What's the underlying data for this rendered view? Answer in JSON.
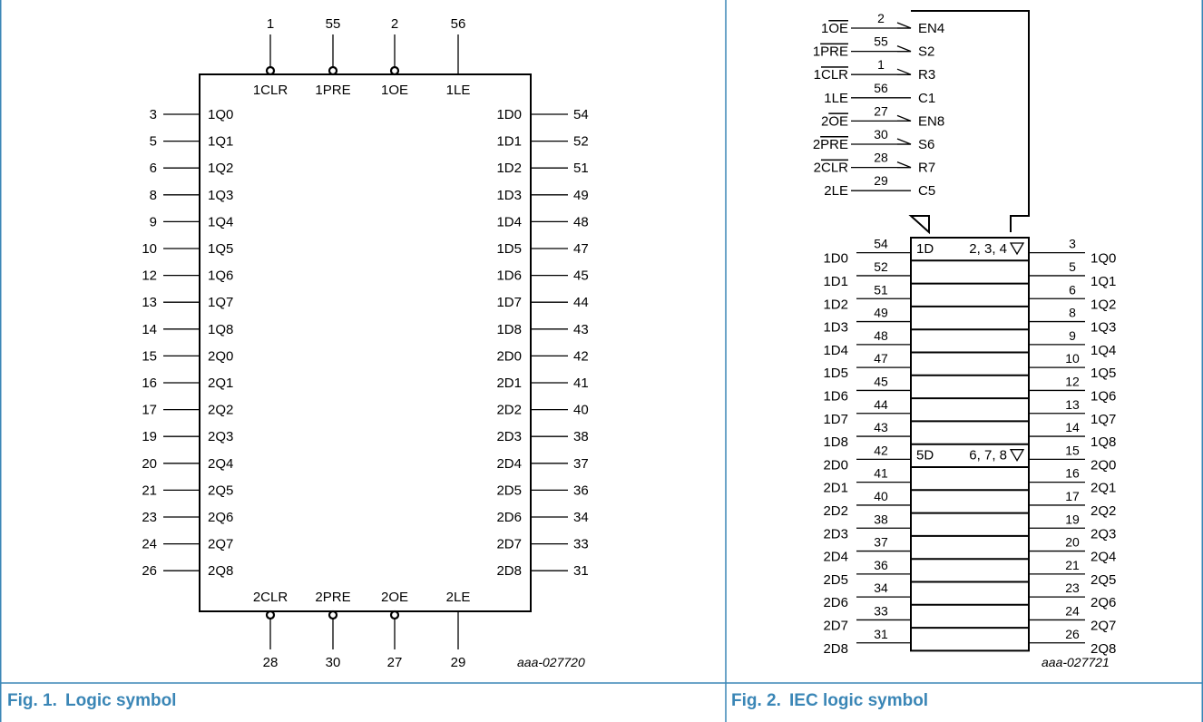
{
  "fig1": {
    "number": "Fig. 1.",
    "title": "Logic symbol",
    "code": "aaa-027720",
    "top_pins": [
      {
        "pin": "1",
        "label": "1CLR",
        "inverted": true
      },
      {
        "pin": "55",
        "label": "1PRE",
        "inverted": true
      },
      {
        "pin": "2",
        "label": "1OE",
        "inverted": true
      },
      {
        "pin": "56",
        "label": "1LE",
        "inverted": false
      }
    ],
    "bottom_pins": [
      {
        "pin": "28",
        "label": "2CLR",
        "inverted": true
      },
      {
        "pin": "30",
        "label": "2PRE",
        "inverted": true
      },
      {
        "pin": "27",
        "label": "2OE",
        "inverted": true
      },
      {
        "pin": "29",
        "label": "2LE",
        "inverted": false
      }
    ],
    "left_pins": [
      {
        "pin": "3",
        "label": "1Q0"
      },
      {
        "pin": "5",
        "label": "1Q1"
      },
      {
        "pin": "6",
        "label": "1Q2"
      },
      {
        "pin": "8",
        "label": "1Q3"
      },
      {
        "pin": "9",
        "label": "1Q4"
      },
      {
        "pin": "10",
        "label": "1Q5"
      },
      {
        "pin": "12",
        "label": "1Q6"
      },
      {
        "pin": "13",
        "label": "1Q7"
      },
      {
        "pin": "14",
        "label": "1Q8"
      },
      {
        "pin": "15",
        "label": "2Q0"
      },
      {
        "pin": "16",
        "label": "2Q1"
      },
      {
        "pin": "17",
        "label": "2Q2"
      },
      {
        "pin": "19",
        "label": "2Q3"
      },
      {
        "pin": "20",
        "label": "2Q4"
      },
      {
        "pin": "21",
        "label": "2Q5"
      },
      {
        "pin": "23",
        "label": "2Q6"
      },
      {
        "pin": "24",
        "label": "2Q7"
      },
      {
        "pin": "26",
        "label": "2Q8"
      }
    ],
    "right_pins": [
      {
        "pin": "54",
        "label": "1D0"
      },
      {
        "pin": "52",
        "label": "1D1"
      },
      {
        "pin": "51",
        "label": "1D2"
      },
      {
        "pin": "49",
        "label": "1D3"
      },
      {
        "pin": "48",
        "label": "1D4"
      },
      {
        "pin": "47",
        "label": "1D5"
      },
      {
        "pin": "45",
        "label": "1D6"
      },
      {
        "pin": "44",
        "label": "1D7"
      },
      {
        "pin": "43",
        "label": "1D8"
      },
      {
        "pin": "42",
        "label": "2D0"
      },
      {
        "pin": "41",
        "label": "2D1"
      },
      {
        "pin": "40",
        "label": "2D2"
      },
      {
        "pin": "38",
        "label": "2D3"
      },
      {
        "pin": "37",
        "label": "2D4"
      },
      {
        "pin": "36",
        "label": "2D5"
      },
      {
        "pin": "34",
        "label": "2D6"
      },
      {
        "pin": "33",
        "label": "2D7"
      },
      {
        "pin": "31",
        "label": "2D8"
      }
    ]
  },
  "fig2": {
    "number": "Fig. 2.",
    "title": "IEC logic symbol",
    "code": "aaa-027721",
    "control": [
      {
        "signal": "1OE",
        "overbar": "OE",
        "pin": "2",
        "func": "EN4",
        "inverted": true
      },
      {
        "signal": "1PRE",
        "overbar": "PRE",
        "pin": "55",
        "func": "S2",
        "inverted": true
      },
      {
        "signal": "1CLR",
        "overbar": "CLR",
        "pin": "1",
        "func": "R3",
        "inverted": true
      },
      {
        "signal": "1LE",
        "overbar": "",
        "pin": "56",
        "func": "C1",
        "inverted": false
      },
      {
        "signal": "2OE",
        "overbar": "OE",
        "pin": "27",
        "func": "EN8",
        "inverted": true
      },
      {
        "signal": "2PRE",
        "overbar": "PRE",
        "pin": "30",
        "func": "S6",
        "inverted": true
      },
      {
        "signal": "2CLR",
        "overbar": "CLR",
        "pin": "28",
        "func": "R7",
        "inverted": true
      },
      {
        "signal": "2LE",
        "overbar": "",
        "pin": "29",
        "func": "C5",
        "inverted": false
      }
    ],
    "cells": [
      {
        "in": "1D0",
        "in_pin": "54",
        "out_pin": "3",
        "out": "1Q0",
        "d": "1D",
        "dep": "2, 3, 4"
      },
      {
        "in": "1D1",
        "in_pin": "52",
        "out_pin": "5",
        "out": "1Q1"
      },
      {
        "in": "1D2",
        "in_pin": "51",
        "out_pin": "6",
        "out": "1Q2"
      },
      {
        "in": "1D3",
        "in_pin": "49",
        "out_pin": "8",
        "out": "1Q3"
      },
      {
        "in": "1D4",
        "in_pin": "48",
        "out_pin": "9",
        "out": "1Q4"
      },
      {
        "in": "1D5",
        "in_pin": "47",
        "out_pin": "10",
        "out": "1Q5"
      },
      {
        "in": "1D6",
        "in_pin": "45",
        "out_pin": "12",
        "out": "1Q6"
      },
      {
        "in": "1D7",
        "in_pin": "44",
        "out_pin": "13",
        "out": "1Q7"
      },
      {
        "in": "1D8",
        "in_pin": "43",
        "out_pin": "14",
        "out": "1Q8"
      },
      {
        "in": "2D0",
        "in_pin": "42",
        "out_pin": "15",
        "out": "2Q0",
        "d": "5D",
        "dep": "6, 7, 8"
      },
      {
        "in": "2D1",
        "in_pin": "41",
        "out_pin": "16",
        "out": "2Q1"
      },
      {
        "in": "2D2",
        "in_pin": "40",
        "out_pin": "17",
        "out": "2Q2"
      },
      {
        "in": "2D3",
        "in_pin": "38",
        "out_pin": "19",
        "out": "2Q3"
      },
      {
        "in": "2D4",
        "in_pin": "37",
        "out_pin": "20",
        "out": "2Q4"
      },
      {
        "in": "2D5",
        "in_pin": "36",
        "out_pin": "21",
        "out": "2Q5"
      },
      {
        "in": "2D6",
        "in_pin": "34",
        "out_pin": "23",
        "out": "2Q6"
      },
      {
        "in": "2D7",
        "in_pin": "33",
        "out_pin": "24",
        "out": "2Q7"
      },
      {
        "in": "2D8",
        "in_pin": "31",
        "out_pin": "26",
        "out": "2Q8"
      }
    ]
  },
  "colors": {
    "frame": "#3a86b6",
    "caption": "#3a86b6",
    "ink": "#000000"
  }
}
